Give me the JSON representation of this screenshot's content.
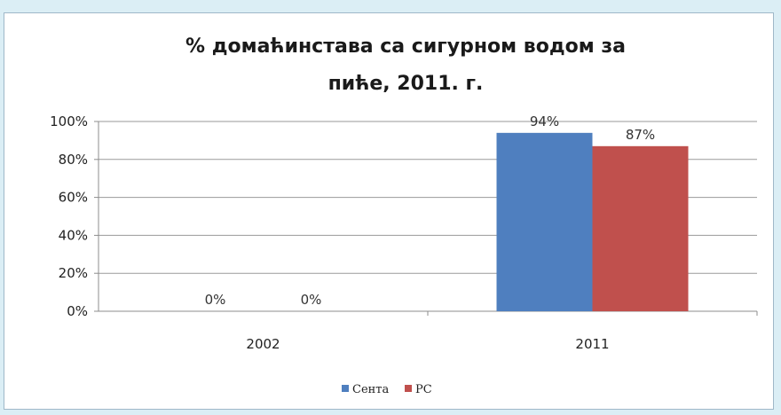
{
  "chart_data": {
    "type": "bar",
    "title_lines": [
      "% домаћинстава са сигурном водом за",
      "пиће, 2011. г."
    ],
    "categories": [
      "2002",
      "2011"
    ],
    "series": [
      {
        "name": "Сента",
        "values": [
          0,
          94
        ],
        "labels": [
          "0%",
          "94%"
        ],
        "color": "#4f7fbf"
      },
      {
        "name": "РС",
        "values": [
          0,
          87
        ],
        "labels": [
          "0%",
          "87%"
        ],
        "color": "#c0504d"
      }
    ],
    "ylim": [
      0,
      100
    ],
    "yticks": [
      0,
      20,
      40,
      60,
      80,
      100
    ],
    "ytick_labels": [
      "0%",
      "20%",
      "40%",
      "60%",
      "80%",
      "100%"
    ],
    "grid": true,
    "legend_position": "bottom"
  }
}
